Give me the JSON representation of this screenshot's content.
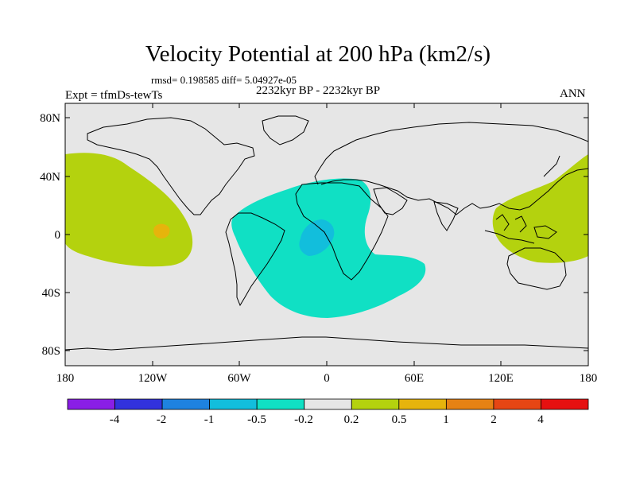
{
  "title": "Velocity Potential at 200 hPa (km2/s)",
  "stats": "rmsd= 0.198585 diff= 5.04927e-05",
  "experiment": "Expt = tfmDs-tewTs",
  "period": "2232kyr BP - 2232kyr BP",
  "season": "ANN",
  "axes": {
    "lat_labels": [
      "80N",
      "40N",
      "0",
      "40S",
      "80S"
    ],
    "lon_labels": [
      "180",
      "120W",
      "60W",
      "0",
      "60E",
      "120E",
      "180"
    ]
  },
  "colorbar": {
    "labels": [
      "-4",
      "-2",
      "-1",
      "-0.5",
      "-0.2",
      "0.2",
      "0.5",
      "1",
      "2",
      "4"
    ],
    "colors": [
      "#8a1ee6",
      "#3232dc",
      "#1e82e0",
      "#12bedc",
      "#10e0c4",
      "#e6e6e6",
      "#b4d20e",
      "#e6b40c",
      "#e68214",
      "#e64614",
      "#e61010"
    ]
  },
  "regions": [
    {
      "name": "east-pacific-positive",
      "category": "0.2 to 0.5",
      "color": "#b4d20e"
    },
    {
      "name": "east-pacific-core",
      "category": "0.5 to 1",
      "color": "#e6b40c"
    },
    {
      "name": "atlantic-negative",
      "category": "-0.5 to -0.2",
      "color": "#10e0c4"
    },
    {
      "name": "atlantic-core",
      "category": "-1 to -0.5",
      "color": "#12bedc"
    },
    {
      "name": "west-pacific-positive",
      "category": "0.2 to 0.5",
      "color": "#b4d20e"
    }
  ]
}
